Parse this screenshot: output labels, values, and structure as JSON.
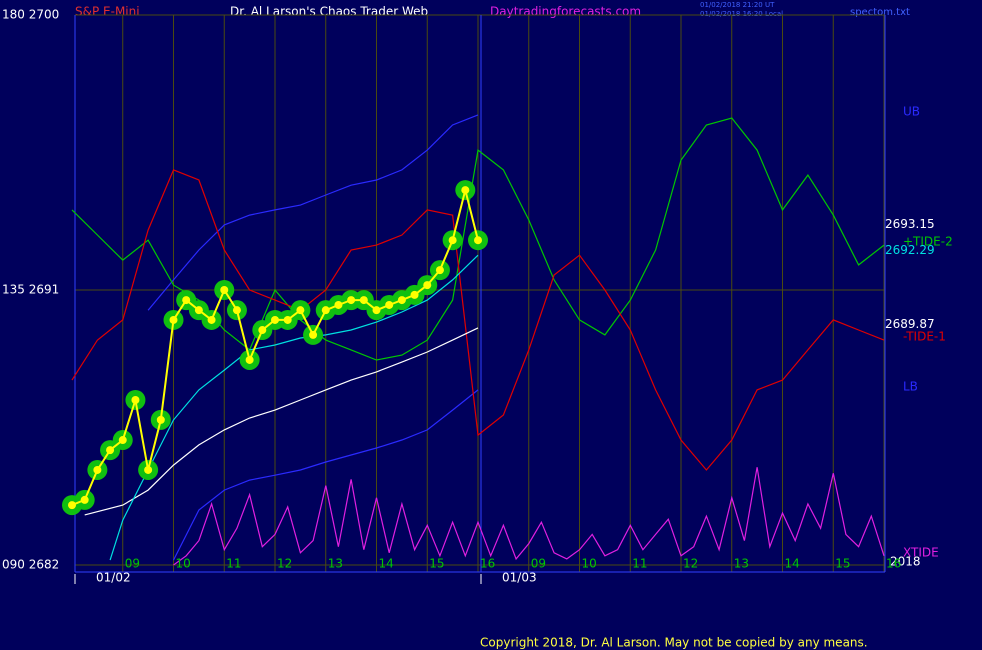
{
  "chart_data": {
    "type": "line",
    "symbol": "S&P E-Mini",
    "title": "Dr. Al Larson's Chaos Trader Web",
    "site": "Daytradingforecasts.com",
    "timestamps": [
      "01/02/2018 21:20 UT",
      "01/02/2018 16:20 Local"
    ],
    "file": "spectom.txt",
    "copyright": "Copyright 2018, Dr. Al Larson. May not be copied by any means.",
    "year": "2018",
    "xlim": [
      0,
      16
    ],
    "ylim": [
      2682,
      2700
    ],
    "yticks": [
      {
        "value": 2682,
        "label": "090  2682"
      },
      {
        "value": 2691,
        "label": "135  2691"
      },
      {
        "value": 2700,
        "label": "180  2700"
      }
    ],
    "xticks": [
      {
        "value": 1,
        "label": "09"
      },
      {
        "value": 2,
        "label": "10"
      },
      {
        "value": 3,
        "label": "11"
      },
      {
        "value": 4,
        "label": "12"
      },
      {
        "value": 5,
        "label": "13"
      },
      {
        "value": 6,
        "label": "14"
      },
      {
        "value": 7,
        "label": "15"
      },
      {
        "value": 8,
        "label": "16"
      },
      {
        "value": 9,
        "label": "09"
      },
      {
        "value": 10,
        "label": "10"
      },
      {
        "value": 11,
        "label": "11"
      },
      {
        "value": 12,
        "label": "12"
      },
      {
        "value": 13,
        "label": "13"
      },
      {
        "value": 14,
        "label": "14"
      },
      {
        "value": 15,
        "label": "15"
      },
      {
        "value": 16,
        "label": "16"
      }
    ],
    "date_labels": [
      {
        "x": 0,
        "label": "01/02"
      },
      {
        "x": 8,
        "label": "01/03"
      }
    ],
    "grid": true,
    "series": [
      {
        "name": "UB",
        "color": "#2a2aff",
        "x": [
          1.5,
          2,
          2.5,
          3,
          3.5,
          4,
          4.5,
          5,
          5.5,
          6,
          6.5,
          7,
          7.5,
          8
        ],
        "values": [
          2690.34,
          2691.33,
          2692.31,
          2693.13,
          2693.45,
          2693.62,
          2693.78,
          2694.11,
          2694.43,
          2694.6,
          2694.93,
          2695.58,
          2696.4,
          2696.73
        ]
      },
      {
        "name": "LB",
        "color": "#2a2aff",
        "x": [
          2,
          2.5,
          3,
          3.5,
          4,
          4.5,
          5,
          5.5,
          6,
          6.5,
          7,
          7.5,
          8
        ],
        "values": [
          2682.16,
          2683.8,
          2684.45,
          2684.78,
          2684.94,
          2685.11,
          2685.37,
          2685.6,
          2685.83,
          2686.09,
          2686.42,
          2687.07,
          2687.73
        ]
      },
      {
        "name": "+TIDE-2",
        "color": "#00c800",
        "x": [
          0,
          0.5,
          1,
          1.5,
          2,
          2.5,
          3,
          3.5,
          4,
          4.5,
          5,
          5.5,
          6,
          6.5,
          7,
          7.5,
          8,
          8.5,
          9,
          9.5,
          10,
          10.5,
          11,
          11.5,
          12,
          12.5,
          13,
          13.5,
          14,
          14.5,
          15,
          15.5,
          16
        ],
        "values": [
          2693.62,
          2692.8,
          2691.98,
          2692.63,
          2691.16,
          2690.67,
          2689.69,
          2689.04,
          2691.0,
          2690.02,
          2689.36,
          2689.04,
          2688.71,
          2688.87,
          2689.36,
          2690.67,
          2695.58,
          2694.93,
          2693.29,
          2691.33,
          2690.02,
          2689.53,
          2690.67,
          2692.31,
          2695.25,
          2696.4,
          2696.63,
          2695.58,
          2693.62,
          2694.76,
          2693.45,
          2691.82,
          2692.47
        ]
      },
      {
        "name": "-TIDE-1",
        "color": "#e00000",
        "x": [
          0,
          0.5,
          1,
          1.5,
          2,
          2.5,
          3,
          3.5,
          4,
          4.5,
          5,
          5.5,
          6,
          6.5,
          7,
          7.5,
          8,
          8.5,
          9,
          9.5,
          10,
          10.5,
          11,
          11.5,
          12,
          12.5,
          13,
          13.5,
          14,
          14.5,
          15,
          15.5,
          16
        ],
        "values": [
          2688.05,
          2689.36,
          2690.02,
          2692.96,
          2694.93,
          2694.6,
          2692.31,
          2691.0,
          2690.67,
          2690.34,
          2691.0,
          2692.31,
          2692.47,
          2692.8,
          2693.62,
          2693.45,
          2686.25,
          2686.91,
          2689.04,
          2691.49,
          2692.14,
          2691.0,
          2689.69,
          2687.73,
          2686.09,
          2685.11,
          2686.09,
          2687.73,
          2688.05,
          2689.04,
          2690.02,
          2689.69,
          2689.36
        ]
      },
      {
        "name": "XTIDE",
        "color": "#e020e0",
        "x": [
          2,
          2.25,
          2.5,
          2.75,
          3,
          3.25,
          3.5,
          3.75,
          4,
          4.25,
          4.5,
          4.75,
          5,
          5.25,
          5.5,
          5.75,
          6,
          6.25,
          6.5,
          6.75,
          7,
          7.25,
          7.5,
          7.75,
          8,
          8.25,
          8.5,
          8.75,
          9,
          9.25,
          9.5,
          9.75,
          10,
          10.25,
          10.5,
          10.75,
          11,
          11.25,
          11.5,
          11.75,
          12,
          12.25,
          12.5,
          12.75,
          13,
          13.25,
          13.5,
          13.75,
          14,
          14.25,
          14.5,
          14.75,
          15,
          15.25,
          15.5,
          15.75,
          16
        ],
        "values": [
          2682.0,
          2682.3,
          2682.8,
          2684.0,
          2682.5,
          2683.2,
          2684.3,
          2682.6,
          2683.0,
          2683.9,
          2682.4,
          2682.8,
          2684.6,
          2682.6,
          2684.8,
          2682.5,
          2684.2,
          2682.4,
          2684.0,
          2682.5,
          2683.3,
          2682.3,
          2683.4,
          2682.3,
          2683.4,
          2682.3,
          2683.3,
          2682.2,
          2682.7,
          2683.4,
          2682.4,
          2682.2,
          2682.5,
          2683.0,
          2682.3,
          2682.5,
          2683.3,
          2682.5,
          2683.0,
          2683.5,
          2682.3,
          2682.6,
          2683.6,
          2682.5,
          2684.2,
          2682.8,
          2685.2,
          2682.6,
          2683.7,
          2682.8,
          2684.0,
          2683.2,
          2685.0,
          2683.0,
          2682.6,
          2683.6,
          2682.3
        ]
      },
      {
        "color": "#ffffff",
        "x": [
          0.25,
          1,
          1.5,
          2,
          2.5,
          3,
          3.5,
          4,
          4.5,
          5,
          5.5,
          6,
          6.5,
          7,
          7.5,
          8
        ],
        "values": [
          2683.64,
          2683.96,
          2684.45,
          2685.27,
          2685.93,
          2686.42,
          2686.81,
          2687.07,
          2687.4,
          2687.73,
          2688.05,
          2688.32,
          2688.64,
          2688.97,
          2689.36,
          2689.76
        ]
      },
      {
        "color": "#00e0e0",
        "x": [
          0.75,
          1,
          1.5,
          2,
          2.5,
          3,
          3.5,
          4,
          4.5,
          5,
          5.5,
          6,
          6.5,
          7,
          7.5,
          8
        ],
        "values": [
          2682.16,
          2683.47,
          2685.11,
          2686.75,
          2687.73,
          2688.38,
          2689.04,
          2689.2,
          2689.43,
          2689.53,
          2689.69,
          2689.95,
          2690.28,
          2690.67,
          2691.33,
          2692.14
        ]
      },
      {
        "color": "#ffff00",
        "markers": true,
        "marker_color": "#10c010",
        "x": [
          0,
          0.25,
          0.5,
          0.75,
          1,
          1.25,
          1.5,
          1.75,
          2,
          2.25,
          2.5,
          2.75,
          3,
          3.25,
          3.5,
          3.75,
          4,
          4.25,
          4.5,
          4.75,
          5,
          5.25,
          5.5,
          5.75,
          6,
          6.25,
          6.5,
          6.75,
          7,
          7.25,
          7.5,
          7.75,
          8
        ],
        "values": [
          2683.96,
          2684.13,
          2685.11,
          2685.76,
          2686.09,
          2687.4,
          2685.11,
          2686.75,
          2690.02,
          2690.67,
          2690.34,
          2690.02,
          2691.0,
          2690.34,
          2688.71,
          2689.69,
          2690.02,
          2690.02,
          2690.34,
          2689.53,
          2690.34,
          2690.51,
          2690.67,
          2690.67,
          2690.34,
          2690.51,
          2690.67,
          2690.84,
          2691.16,
          2691.65,
          2692.63,
          2694.27,
          2692.63
        ]
      }
    ],
    "annotations": [
      {
        "value": 2693.15,
        "color": "#ffffff"
      },
      {
        "value": 2692.29,
        "color": "#00e0e0"
      },
      {
        "value": 2689.87,
        "color": "#ffffff"
      }
    ]
  }
}
